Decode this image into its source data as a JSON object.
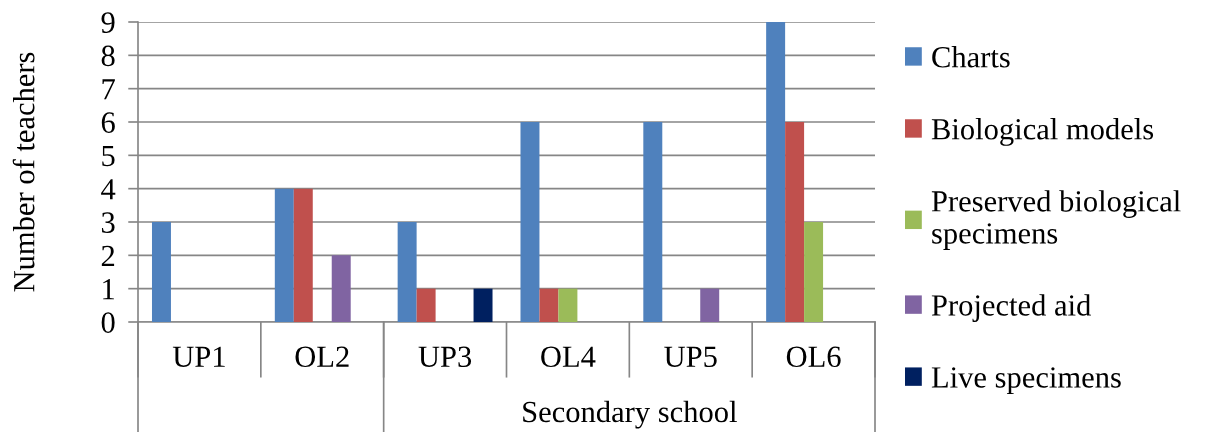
{
  "chart_data": {
    "type": "bar",
    "xlabel": "Secondary school",
    "ylabel": "Number of teachers",
    "categories": [
      "UP1",
      "OL2",
      "UP3",
      "OL4",
      "UP5",
      "OL6"
    ],
    "series": [
      {
        "name": "Charts",
        "color": "#4f81bd",
        "values": [
          3,
          4,
          3,
          6,
          6,
          9
        ]
      },
      {
        "name": "Biological models",
        "color": "#c0504d",
        "values": [
          0,
          4,
          1,
          1,
          0,
          6
        ]
      },
      {
        "name": "Preserved biological specimens",
        "color": "#9bbb59",
        "values": [
          0,
          0,
          0,
          1,
          0,
          3
        ]
      },
      {
        "name": "Projected aid",
        "color": "#8064a2",
        "values": [
          0,
          2,
          0,
          0,
          1,
          0
        ]
      },
      {
        "name": "Live specimens",
        "color": "#002060",
        "values": [
          0,
          0,
          1,
          0,
          0,
          0
        ]
      }
    ],
    "ylim": [
      0,
      9
    ],
    "yticks": [
      0,
      1,
      2,
      3,
      4,
      5,
      6,
      7,
      8,
      9
    ],
    "grid": "y",
    "legend": "right"
  }
}
